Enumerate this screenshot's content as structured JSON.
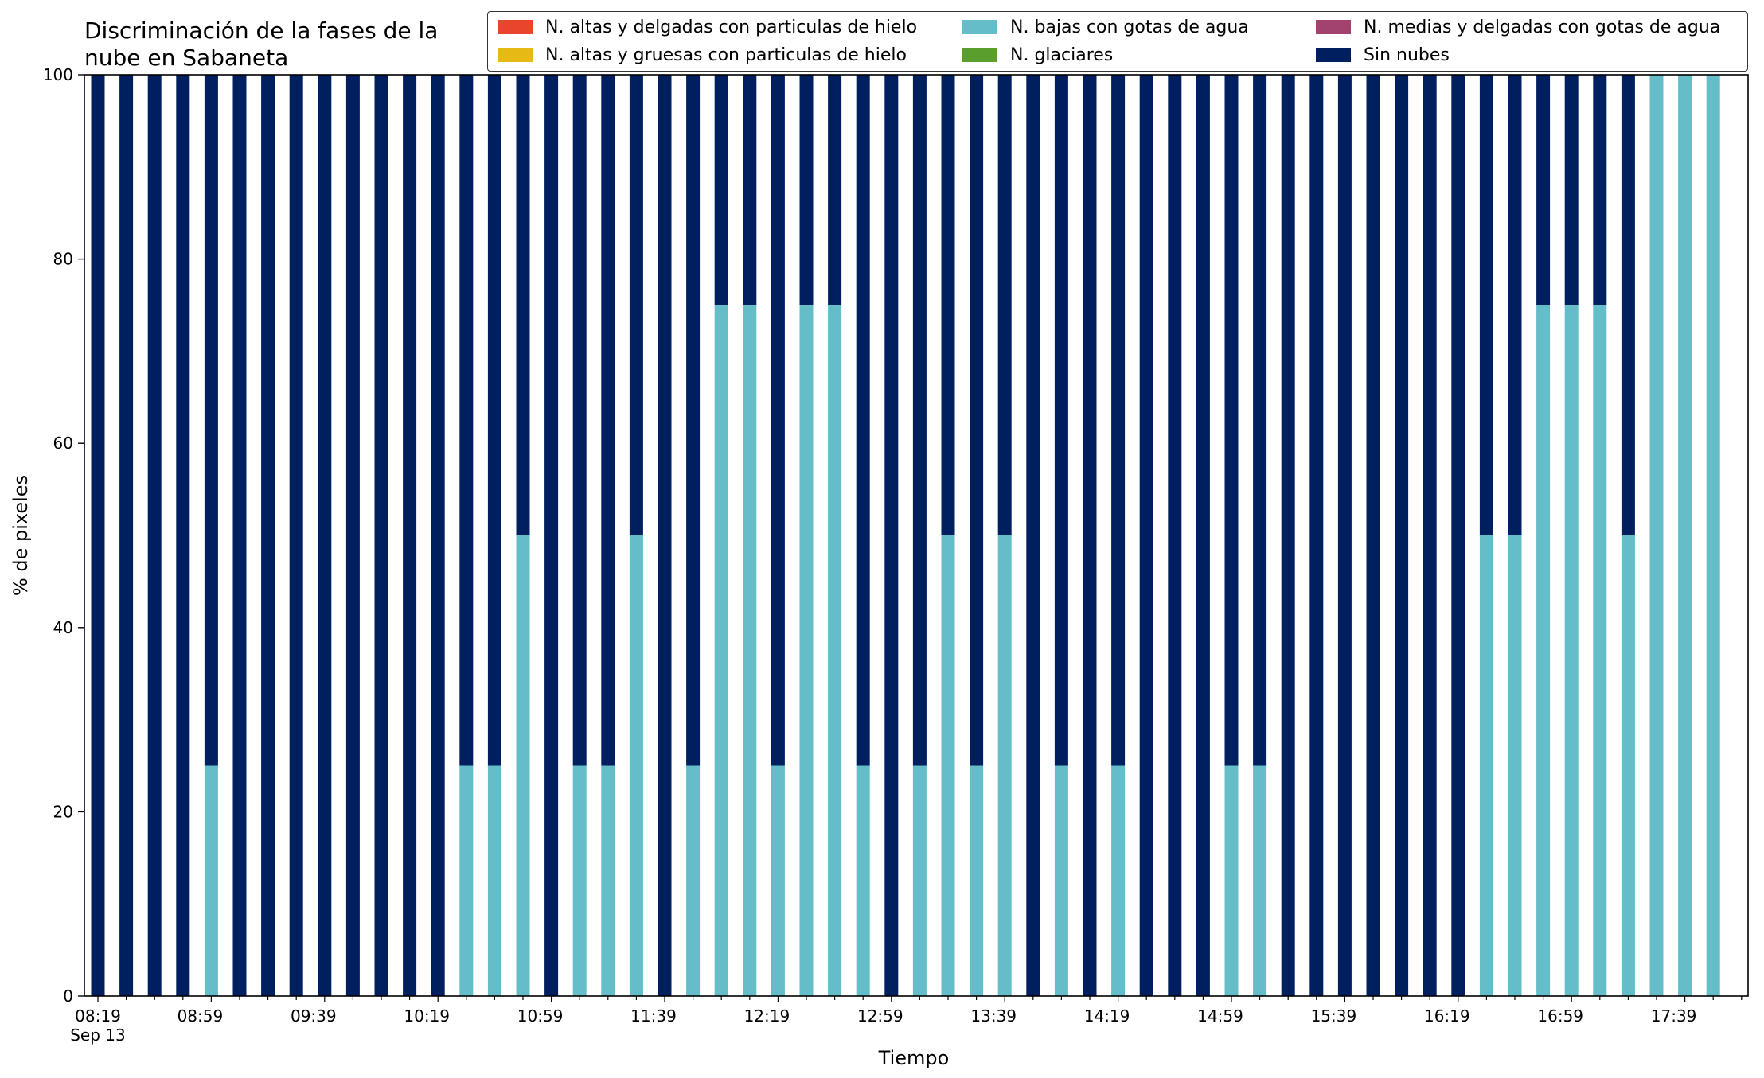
{
  "chart_data": {
    "type": "bar",
    "stacked": true,
    "title": "Discriminación de la fases de la nube en Sabaneta",
    "title_lines": [
      "Discriminación de la fases de la",
      "nube en Sabaneta"
    ],
    "xlabel": "Tiempo",
    "ylabel": "% de pixeles",
    "ylim": [
      0,
      100
    ],
    "yticks": [
      0,
      20,
      40,
      60,
      80,
      100
    ],
    "grid": false,
    "legend_position": "top-right",
    "xtick_labels": [
      "08:19",
      "08:59",
      "09:39",
      "10:19",
      "10:59",
      "11:39",
      "12:19",
      "12:59",
      "13:39",
      "14:19",
      "14:59",
      "15:39",
      "16:19",
      "16:59",
      "17:39"
    ],
    "xtick_sublabel": "Sep 13",
    "categories": [
      "08:19",
      "08:29",
      "08:39",
      "08:49",
      "08:59",
      "09:09",
      "09:19",
      "09:29",
      "09:39",
      "09:49",
      "09:59",
      "10:09",
      "10:19",
      "10:29",
      "10:39",
      "10:49",
      "10:59",
      "11:09",
      "11:19",
      "11:29",
      "11:39",
      "11:49",
      "11:59",
      "12:09",
      "12:19",
      "12:29",
      "12:39",
      "12:49",
      "12:59",
      "13:09",
      "13:19",
      "13:29",
      "13:39",
      "13:49",
      "13:59",
      "14:09",
      "14:19",
      "14:29",
      "14:39",
      "14:49",
      "14:59",
      "15:09",
      "15:19",
      "15:29",
      "15:39",
      "15:49",
      "15:59",
      "16:09",
      "16:19",
      "16:29",
      "16:39",
      "16:49",
      "16:59",
      "17:09",
      "17:19",
      "17:29",
      "17:39",
      "17:49"
    ],
    "series": [
      {
        "name": "N. altas y delgadas con particulas de hielo",
        "color": "#e8452c",
        "values": [
          0,
          0,
          0,
          0,
          0,
          0,
          0,
          0,
          0,
          0,
          0,
          0,
          0,
          0,
          0,
          0,
          0,
          0,
          0,
          0,
          0,
          0,
          0,
          0,
          0,
          0,
          0,
          0,
          0,
          0,
          0,
          0,
          0,
          0,
          0,
          0,
          0,
          0,
          0,
          0,
          0,
          0,
          0,
          0,
          0,
          0,
          0,
          0,
          0,
          0,
          0,
          0,
          0,
          0,
          0,
          0,
          0,
          0
        ]
      },
      {
        "name": "N. altas y gruesas con particulas de hielo",
        "color": "#e6b914",
        "values": [
          0,
          0,
          0,
          0,
          0,
          0,
          0,
          0,
          0,
          0,
          0,
          0,
          0,
          0,
          0,
          0,
          0,
          0,
          0,
          0,
          0,
          0,
          0,
          0,
          0,
          0,
          0,
          0,
          0,
          0,
          0,
          0,
          0,
          0,
          0,
          0,
          0,
          0,
          0,
          0,
          0,
          0,
          0,
          0,
          0,
          0,
          0,
          0,
          0,
          0,
          0,
          0,
          0,
          0,
          0,
          0,
          0,
          0
        ]
      },
      {
        "name": "N. bajas con gotas de agua",
        "color": "#65bdca",
        "values": [
          0,
          0,
          0,
          0,
          25,
          0,
          0,
          0,
          0,
          0,
          0,
          0,
          0,
          25,
          25,
          50,
          0,
          25,
          25,
          50,
          0,
          25,
          75,
          75,
          25,
          75,
          75,
          25,
          0,
          25,
          50,
          25,
          50,
          0,
          25,
          0,
          25,
          0,
          0,
          0,
          25,
          25,
          0,
          0,
          0,
          0,
          0,
          0,
          0,
          50,
          50,
          75,
          75,
          75,
          50,
          100,
          100,
          100
        ]
      },
      {
        "name": "N. glaciares",
        "color": "#5a9e2e",
        "values": [
          0,
          0,
          0,
          0,
          0,
          0,
          0,
          0,
          0,
          0,
          0,
          0,
          0,
          0,
          0,
          0,
          0,
          0,
          0,
          0,
          0,
          0,
          0,
          0,
          0,
          0,
          0,
          0,
          0,
          0,
          0,
          0,
          0,
          0,
          0,
          0,
          0,
          0,
          0,
          0,
          0,
          0,
          0,
          0,
          0,
          0,
          0,
          0,
          0,
          0,
          0,
          0,
          0,
          0,
          0,
          0,
          0,
          0
        ]
      },
      {
        "name": "N. medias y delgadas con gotas de agua",
        "color": "#a2426f",
        "values": [
          0,
          0,
          0,
          0,
          0,
          0,
          0,
          0,
          0,
          0,
          0,
          0,
          0,
          0,
          0,
          0,
          0,
          0,
          0,
          0,
          0,
          0,
          0,
          0,
          0,
          0,
          0,
          0,
          0,
          0,
          0,
          0,
          0,
          0,
          0,
          0,
          0,
          0,
          0,
          0,
          0,
          0,
          0,
          0,
          0,
          0,
          0,
          0,
          0,
          0,
          0,
          0,
          0,
          0,
          0,
          0,
          0,
          0
        ]
      },
      {
        "name": "Sin nubes",
        "color": "#001f5f",
        "values": [
          100,
          100,
          100,
          100,
          75,
          100,
          100,
          100,
          100,
          100,
          100,
          100,
          100,
          75,
          75,
          50,
          100,
          75,
          75,
          50,
          100,
          75,
          25,
          25,
          75,
          25,
          25,
          75,
          100,
          75,
          50,
          75,
          50,
          100,
          75,
          100,
          75,
          100,
          100,
          100,
          75,
          75,
          100,
          100,
          100,
          100,
          100,
          100,
          100,
          50,
          50,
          25,
          25,
          25,
          50,
          0,
          0,
          0
        ]
      }
    ],
    "stack_order": [
      "N. bajas con gotas de agua",
      "N. altas y delgadas con particulas de hielo",
      "N. altas y gruesas con particulas de hielo",
      "N. glaciares",
      "N. medias y delgadas con gotas de agua",
      "Sin nubes"
    ]
  }
}
